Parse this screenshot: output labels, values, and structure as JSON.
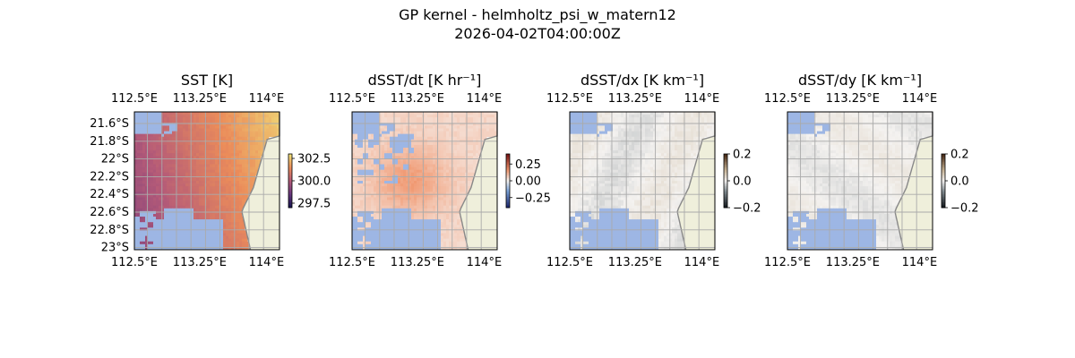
{
  "figure": {
    "title_line1": "GP kernel - helmholtz_psi_w_matern12",
    "title_line2": "2026-04-02T04:00:00Z"
  },
  "chart_data": [
    {
      "type": "heatmap",
      "title": "SST [K]",
      "x_ticks": [
        "112.5°E",
        "113.25°E",
        "114°E"
      ],
      "y_ticks": [
        "21.6°S",
        "21.8°S",
        "22°S",
        "22.2°S",
        "22.4°S",
        "22.6°S",
        "22.8°S",
        "23°S"
      ],
      "show_lat_labels": true,
      "colorbar": {
        "ticks": [
          "302.5",
          "300.0",
          "297.5"
        ],
        "range": [
          297,
          303
        ],
        "colormap": "plasma-muted",
        "extent": "short"
      },
      "value_range_in_view": [
        298.5,
        302.0
      ],
      "pattern": "warmer toward the east and north, cooler toward south-west",
      "land_color": "#efefdb",
      "missing_color": "#9db6e4"
    },
    {
      "type": "heatmap",
      "title": "dSST/dt [K hr⁻¹]",
      "x_ticks": [
        "112.5°E",
        "113.25°E",
        "114°E"
      ],
      "show_lat_labels": false,
      "colorbar": {
        "ticks": [
          "0.25",
          "0.00",
          "−0.25"
        ],
        "range": [
          -0.4,
          0.4
        ],
        "colormap": "blue-white-red",
        "extent": "short"
      },
      "value_range_in_view": [
        -0.05,
        0.2
      ],
      "pattern": "mostly light positive (pale orange), stronger in the centre",
      "land_color": "#efefdb",
      "missing_color": "#9db6e4"
    },
    {
      "type": "heatmap",
      "title": "dSST/dx [K km⁻¹]",
      "x_ticks": [
        "112.5°E",
        "113.25°E",
        "114°E"
      ],
      "show_lat_labels": false,
      "colorbar": {
        "ticks": [
          "0.2",
          "0.0",
          "−0.2"
        ],
        "range": [
          -0.2,
          0.2
        ],
        "colormap": "dark-grey-white-brown",
        "extent": "medium"
      },
      "value_range_in_view": [
        -0.03,
        0.03
      ],
      "pattern": "near zero, faint tan and grey streaks",
      "land_color": "#efefdb",
      "missing_color": "#9db6e4"
    },
    {
      "type": "heatmap",
      "title": "dSST/dy [K km⁻¹]",
      "x_ticks": [
        "112.5°E",
        "113.25°E",
        "114°E"
      ],
      "show_lat_labels": false,
      "colorbar": {
        "ticks": [
          "0.2",
          "0.0",
          "−0.2"
        ],
        "range": [
          -0.2,
          0.2
        ],
        "colormap": "dark-grey-white-brown",
        "extent": "medium"
      },
      "value_range_in_view": [
        -0.02,
        0.02
      ],
      "pattern": "near zero, very faint tan patches",
      "land_color": "#efefdb",
      "missing_color": "#9db6e4"
    }
  ]
}
